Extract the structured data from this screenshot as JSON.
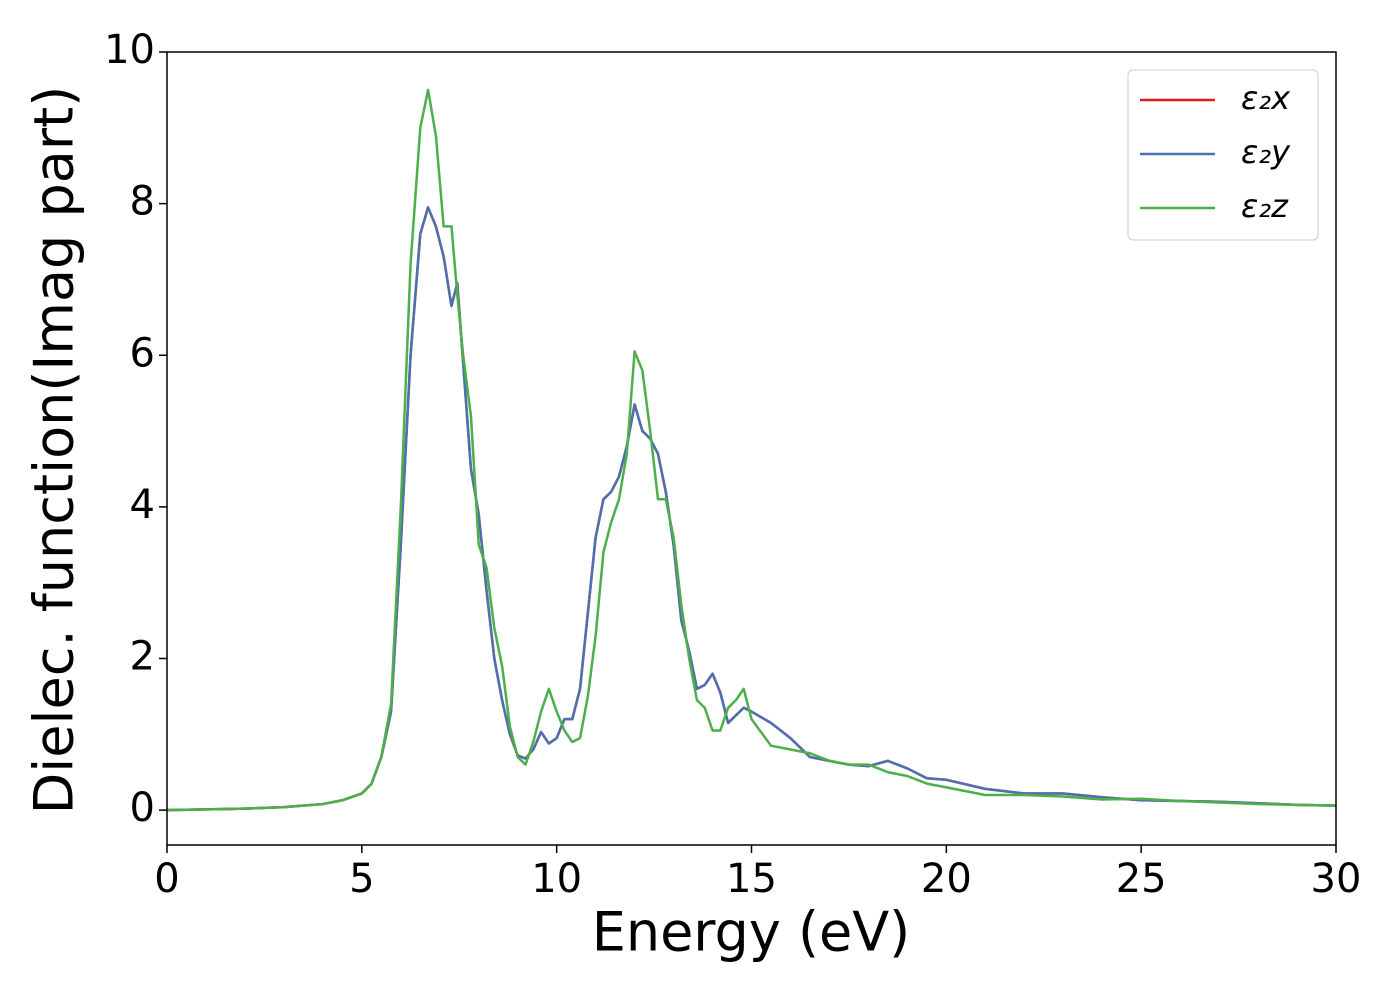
{
  "chart_data": {
    "type": "line",
    "xlabel": "Energy (eV)",
    "ylabel": "Dielec. function(Imag part)",
    "x": [
      0,
      1,
      2,
      3,
      4,
      4.5,
      5,
      5.25,
      5.5,
      5.75,
      6,
      6.25,
      6.5,
      6.7,
      6.9,
      7.1,
      7.3,
      7.45,
      7.6,
      7.8,
      8,
      8.2,
      8.4,
      8.6,
      8.8,
      9,
      9.2,
      9.4,
      9.6,
      9.8,
      10,
      10.2,
      10.4,
      10.6,
      10.8,
      11,
      11.2,
      11.4,
      11.6,
      11.8,
      12,
      12.2,
      12.4,
      12.6,
      12.8,
      13,
      13.2,
      13.4,
      13.6,
      13.8,
      14,
      14.2,
      14.4,
      14.6,
      14.8,
      15,
      15.5,
      16,
      16.5,
      17,
      17.5,
      18,
      18.5,
      19,
      19.5,
      20,
      21,
      22,
      23,
      24,
      25,
      26,
      27,
      28,
      29,
      30
    ],
    "series": [
      {
        "name": "ε₂x",
        "color": "#e41a1c",
        "values": [
          0,
          0.01,
          0.02,
          0.04,
          0.08,
          0.13,
          0.22,
          0.35,
          0.7,
          1.3,
          3.5,
          6.0,
          7.6,
          7.95,
          7.7,
          7.3,
          6.65,
          6.95,
          5.9,
          4.5,
          3.9,
          2.9,
          2.0,
          1.45,
          1.0,
          0.72,
          0.68,
          0.8,
          1.03,
          0.88,
          0.95,
          1.2,
          1.2,
          1.6,
          2.6,
          3.6,
          4.1,
          4.2,
          4.4,
          4.8,
          5.35,
          5.0,
          4.9,
          4.7,
          4.2,
          3.5,
          2.5,
          2.1,
          1.6,
          1.65,
          1.8,
          1.55,
          1.15,
          1.25,
          1.35,
          1.3,
          1.15,
          0.95,
          0.7,
          0.65,
          0.6,
          0.58,
          0.65,
          0.55,
          0.42,
          0.4,
          0.28,
          0.22,
          0.22,
          0.17,
          0.13,
          0.12,
          0.11,
          0.09,
          0.07,
          0.06
        ]
      },
      {
        "name": "ε₂y",
        "color": "#4a72b0",
        "values": [
          0,
          0.01,
          0.02,
          0.04,
          0.08,
          0.13,
          0.22,
          0.35,
          0.7,
          1.3,
          3.5,
          6.0,
          7.6,
          7.95,
          7.7,
          7.3,
          6.65,
          6.95,
          5.9,
          4.5,
          3.9,
          2.9,
          2.0,
          1.45,
          1.0,
          0.72,
          0.68,
          0.8,
          1.03,
          0.88,
          0.95,
          1.2,
          1.2,
          1.6,
          2.6,
          3.6,
          4.1,
          4.2,
          4.4,
          4.8,
          5.35,
          5.0,
          4.9,
          4.7,
          4.2,
          3.5,
          2.5,
          2.1,
          1.6,
          1.65,
          1.8,
          1.55,
          1.15,
          1.25,
          1.35,
          1.3,
          1.15,
          0.95,
          0.7,
          0.65,
          0.6,
          0.58,
          0.65,
          0.55,
          0.42,
          0.4,
          0.28,
          0.22,
          0.22,
          0.17,
          0.13,
          0.12,
          0.11,
          0.09,
          0.07,
          0.06
        ]
      },
      {
        "name": "ε₂z",
        "color": "#4daf4a",
        "values": [
          0,
          0.01,
          0.02,
          0.04,
          0.08,
          0.13,
          0.22,
          0.35,
          0.7,
          1.4,
          4.0,
          7.2,
          9.0,
          9.5,
          8.9,
          7.7,
          7.7,
          6.8,
          6.0,
          5.2,
          3.5,
          3.2,
          2.4,
          1.9,
          1.1,
          0.7,
          0.6,
          0.9,
          1.3,
          1.6,
          1.3,
          1.05,
          0.9,
          0.95,
          1.5,
          2.3,
          3.4,
          3.8,
          4.1,
          4.7,
          6.05,
          5.8,
          5.0,
          4.1,
          4.1,
          3.6,
          2.7,
          2.0,
          1.45,
          1.35,
          1.05,
          1.05,
          1.35,
          1.45,
          1.6,
          1.2,
          0.85,
          0.8,
          0.75,
          0.65,
          0.6,
          0.6,
          0.5,
          0.45,
          0.35,
          0.3,
          0.2,
          0.2,
          0.18,
          0.14,
          0.15,
          0.12,
          0.1,
          0.08,
          0.07,
          0.06
        ]
      }
    ],
    "xlim": [
      0,
      30
    ],
    "xticks": [
      0,
      5,
      10,
      15,
      20,
      25,
      30
    ],
    "ylim": [
      -0.46,
      10
    ],
    "yticks": [
      0,
      2,
      4,
      6,
      8,
      10
    ],
    "grid": false,
    "legend": "upper right"
  }
}
